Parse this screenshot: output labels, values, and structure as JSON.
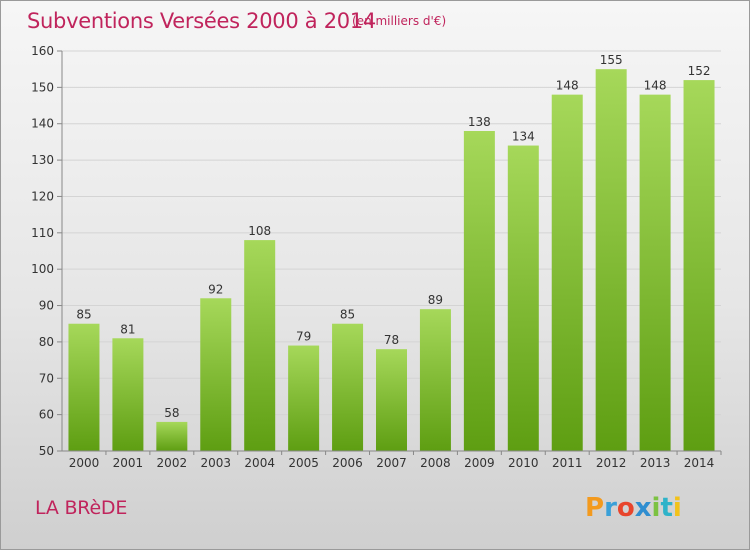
{
  "header": {
    "title": "Subventions Versées 2000 à 2014",
    "subtitle": "(en milliers d'€)"
  },
  "footer": {
    "place": "LA BRèDE",
    "logo_text": "Proxiti"
  },
  "colors": {
    "title": "#c0245c",
    "bar_top": "#a6d85a",
    "bar_bottom": "#5e9e12",
    "axis": "#888888",
    "grid": "#d4d4d4"
  },
  "chart_data": {
    "type": "bar",
    "categories": [
      "2000",
      "2001",
      "2002",
      "2003",
      "2004",
      "2005",
      "2006",
      "2007",
      "2008",
      "2009",
      "2010",
      "2011",
      "2012",
      "2013",
      "2014"
    ],
    "values": [
      85,
      81,
      58,
      92,
      108,
      79,
      85,
      78,
      89,
      138,
      134,
      148,
      155,
      148,
      152
    ],
    "title": "Subventions Versées 2000 à 2014",
    "ylim": [
      50,
      160
    ],
    "yticks": [
      50,
      60,
      70,
      80,
      90,
      100,
      110,
      120,
      130,
      140,
      150,
      160
    ],
    "grid": true,
    "data_labels": true
  }
}
